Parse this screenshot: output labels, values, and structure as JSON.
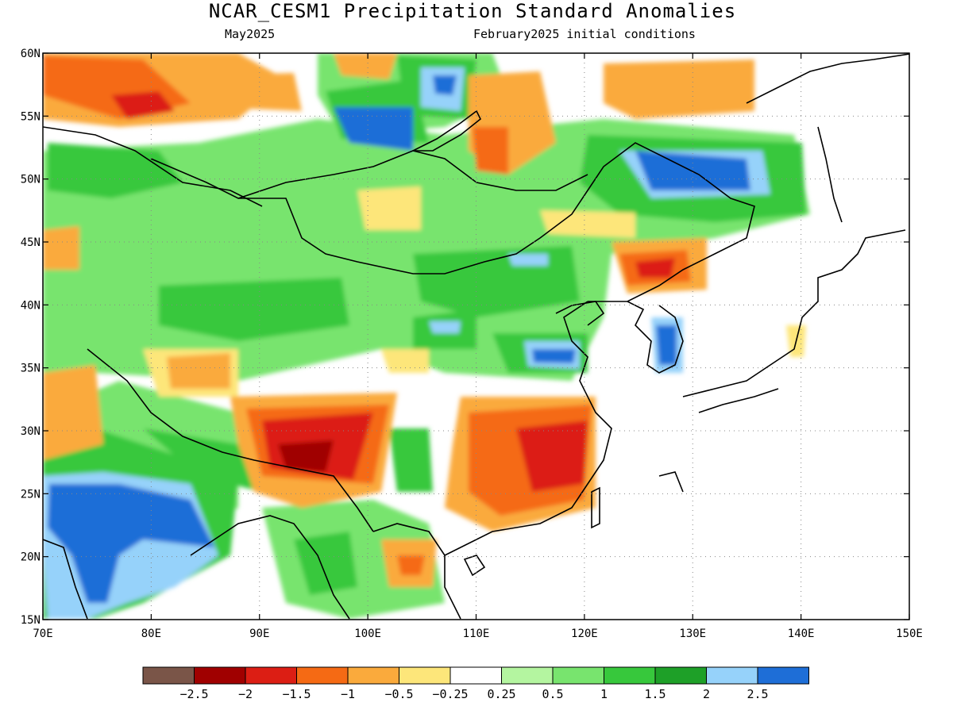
{
  "header": {
    "title": "NCAR_CESM1 Precipitation Standard Anomalies",
    "valid_month": "May2025",
    "init_conditions": "February2025 initial conditions"
  },
  "map": {
    "lon_range": [
      70,
      150
    ],
    "lat_range": [
      15,
      60
    ],
    "lon_ticks": [
      "70E",
      "80E",
      "90E",
      "100E",
      "110E",
      "120E",
      "130E",
      "140E",
      "150E"
    ],
    "lat_ticks": [
      "60N",
      "55N",
      "50N",
      "45N",
      "40N",
      "35N",
      "30N",
      "25N",
      "20N",
      "15N"
    ]
  },
  "colorbar": {
    "colors": [
      "#7a5548",
      "#a00000",
      "#dc1e14",
      "#f56a14",
      "#faaa3c",
      "#fde67a",
      "#ffffff",
      "#b4f5a0",
      "#78e46e",
      "#37c83c",
      "#1ea028",
      "#96d2fa",
      "#1e6ed7"
    ],
    "labels": [
      "−2.5",
      "−2",
      "−1.5",
      "−1",
      "−0.5",
      "−0.25",
      "0.25",
      "0.5",
      "1",
      "1.5",
      "2",
      "2.5"
    ]
  }
}
